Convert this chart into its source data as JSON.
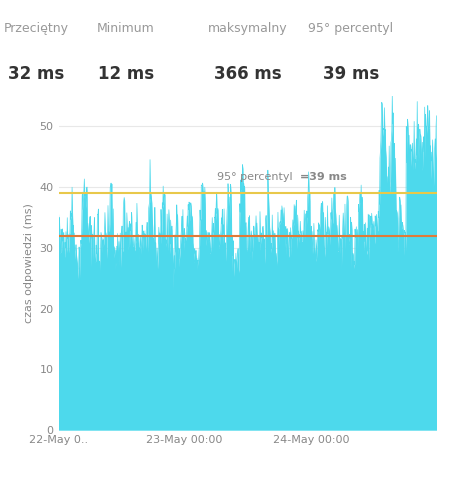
{
  "title_stats": [
    {
      "label": "Przeciętny",
      "value": "32 ms"
    },
    {
      "label": "Minimum",
      "value": "12 ms"
    },
    {
      "label": "maksymalny",
      "value": "366 ms"
    },
    {
      "label": "95° percentyl",
      "value": "39 ms"
    }
  ],
  "ylabel": "czas odpowiedzi (ms)",
  "xlabel_ticks": [
    "22-May 0..",
    "23-May 00:00",
    "24-May 00:00"
  ],
  "yticks": [
    0,
    10,
    20,
    30,
    40,
    50
  ],
  "avg_line": 32,
  "percentile_line": 39,
  "percentile_label_normal": "95° percentyl  ",
  "percentile_label_bold": "=39 ms",
  "area_color": "#4DD9EC",
  "area_alpha": 1.0,
  "avg_line_color": "#E07B39",
  "percentile_line_color": "#E8C84A",
  "background_color": "#FFFFFF",
  "plot_bg_color": "#FFFFFF",
  "grid_color": "#E8E8E8",
  "text_color": "#888888",
  "stat_label_color": "#999999",
  "stat_value_color": "#333333"
}
